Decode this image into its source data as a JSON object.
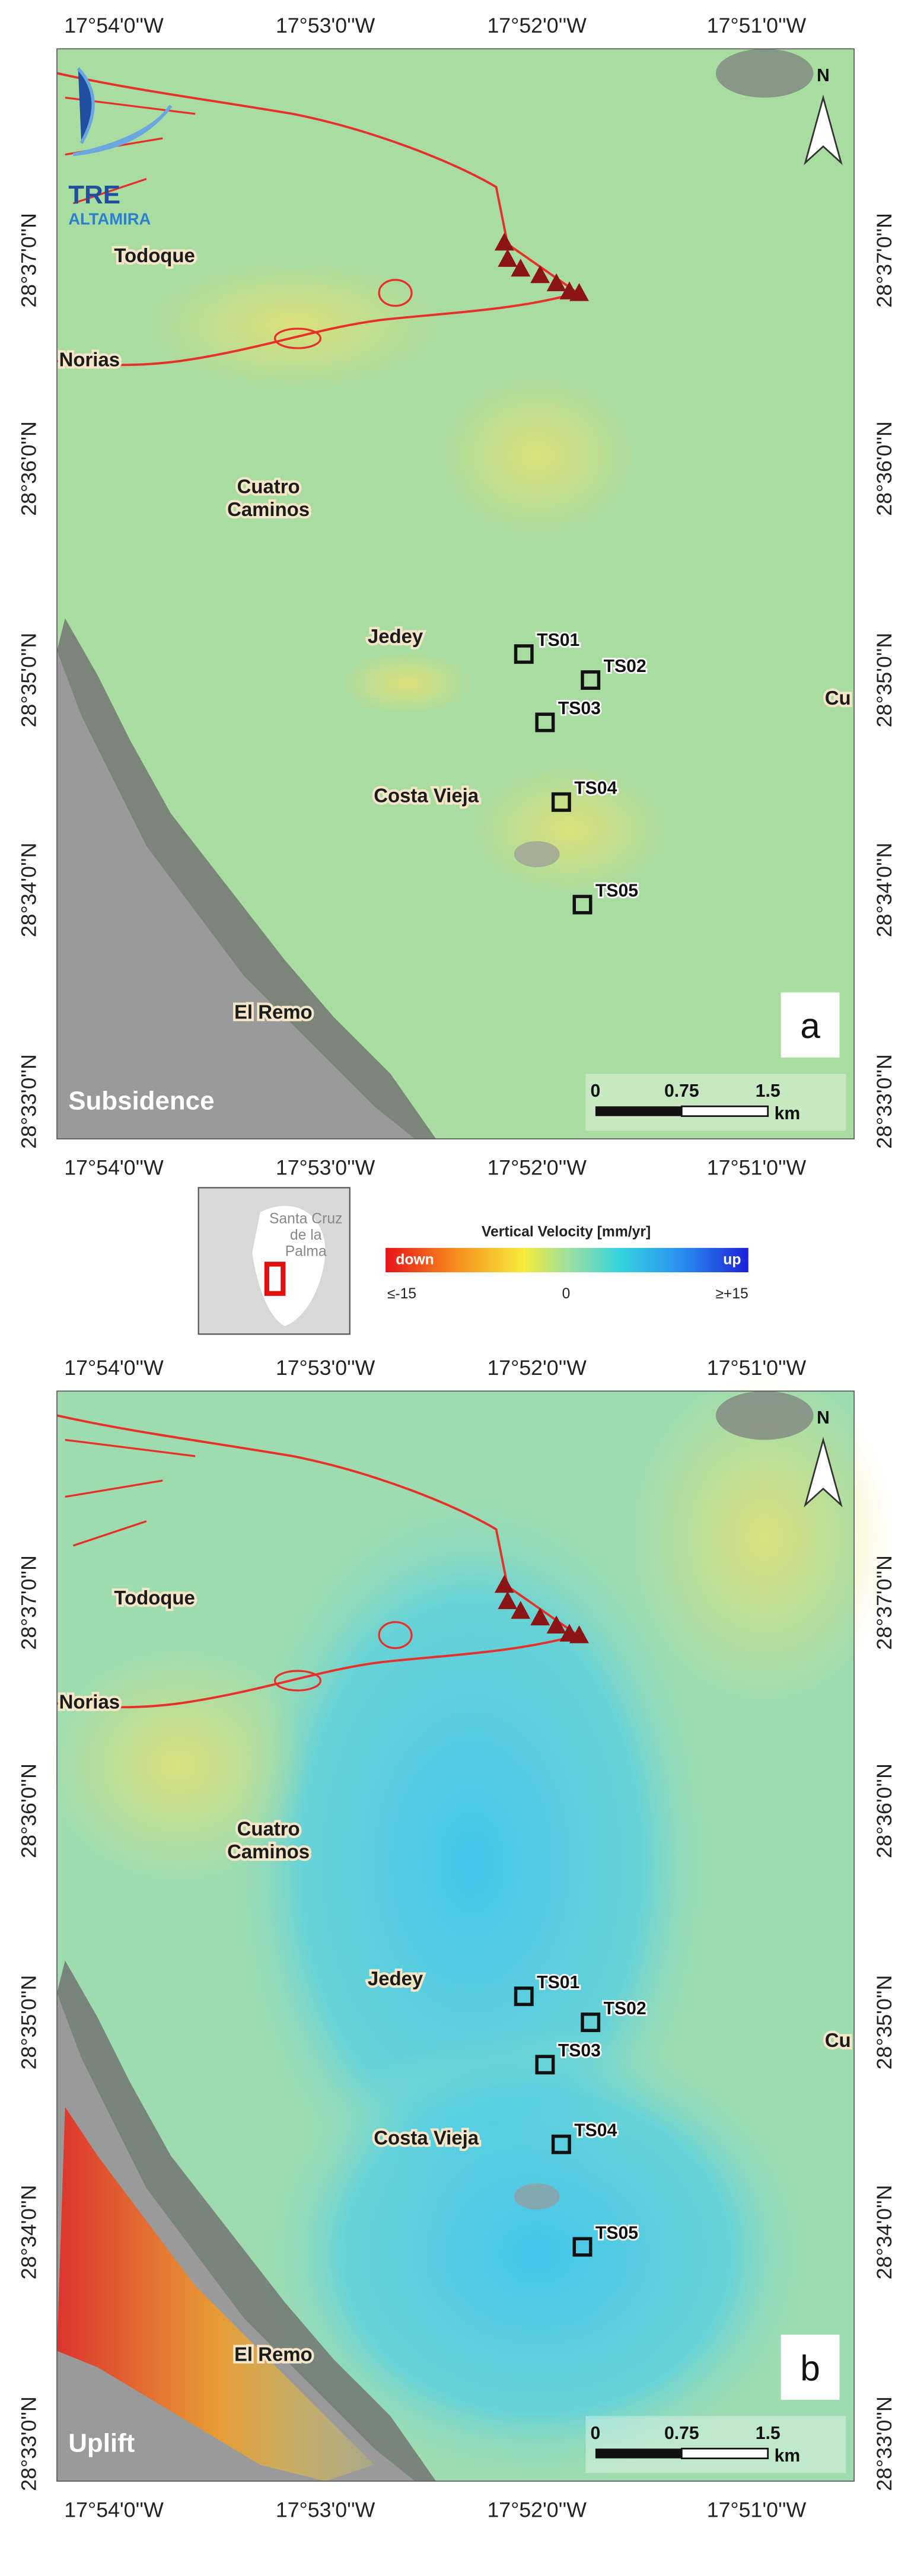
{
  "logo": {
    "line1": "TRE",
    "line2": "ALTAMIRA"
  },
  "panels": [
    {
      "letter": "a",
      "label": "Subsidence",
      "north": "N",
      "lon_labels": [
        "17°54'0''W",
        "17°53'0''W",
        "17°52'0''W",
        "17°51'0''W"
      ],
      "lat_labels": [
        "28°37'0''N",
        "28°36'0''N",
        "28°35'0''N",
        "28°34'0''N",
        "28°33'0''N"
      ],
      "places": [
        "Todoque",
        "Norias",
        "Cuatro",
        "Caminos",
        "Jedey",
        "Costa Vieja",
        "El Remo",
        "Cu"
      ],
      "points": [
        "TS01",
        "TS02",
        "TS03",
        "TS04",
        "TS05"
      ],
      "scale_bar": {
        "labels": [
          "0",
          "0.75",
          "1.5"
        ],
        "unit": "km"
      }
    },
    {
      "letter": "b",
      "label": "Uplift",
      "north": "N",
      "lon_labels": [
        "17°54'0''W",
        "17°53'0''W",
        "17°52'0''W",
        "17°51'0''W"
      ],
      "lat_labels": [
        "28°37'0''N",
        "28°36'0''N",
        "28°35'0''N",
        "28°34'0''N",
        "28°33'0''N"
      ],
      "places": [
        "Todoque",
        "Norias",
        "Cuatro",
        "Caminos",
        "Jedey",
        "Costa Vieja",
        "El Remo",
        "Cu"
      ],
      "points": [
        "TS01",
        "TS02",
        "TS03",
        "TS04",
        "TS05"
      ],
      "scale_bar": {
        "labels": [
          "0",
          "0.75",
          "1.5"
        ],
        "unit": "km"
      }
    }
  ],
  "inset": {
    "lines": [
      "Santa Cruz",
      "de la",
      "Palma"
    ]
  },
  "legend": {
    "title": "Vertical Velocity [mm/yr]",
    "low_tag": "down",
    "high_tag": "up",
    "ticks": [
      "≤-15",
      "0",
      "≥+15"
    ]
  }
}
